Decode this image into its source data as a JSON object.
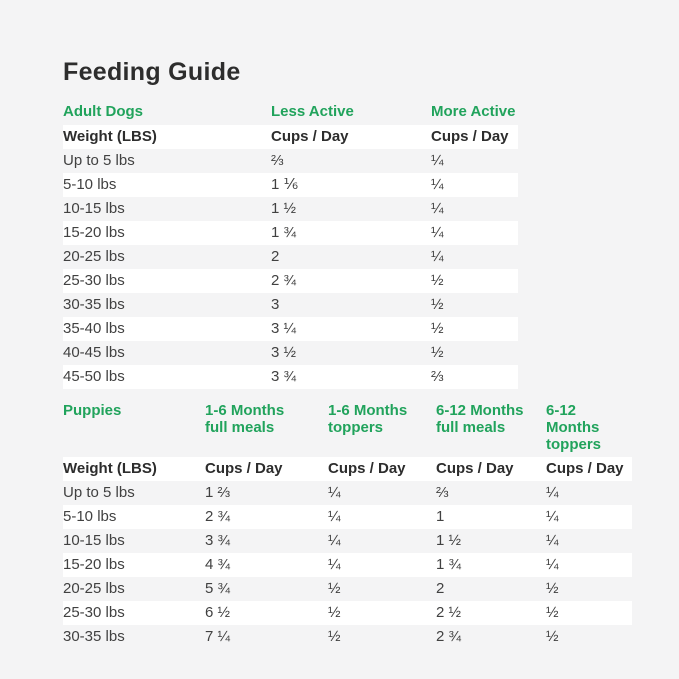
{
  "page": {
    "title": "Feeding Guide",
    "background_color": "#f4f4f5",
    "accent_green": "#21a35c",
    "stripe_white": "#ffffff"
  },
  "adult_table": {
    "section_title": "Adult Dogs",
    "col_headers": [
      "Less Active",
      "More Active"
    ],
    "sub_headers": {
      "weight": "Weight (LBS)",
      "less": "Cups / Day",
      "more": "Cups / Day"
    },
    "rows": [
      {
        "weight": "Up to 5 lbs",
        "less": "⅔",
        "more": "¼"
      },
      {
        "weight": "5-10 lbs",
        "less": "1 ⅙",
        "more": "¼"
      },
      {
        "weight": "10-15 lbs",
        "less": "1 ½",
        "more": "¼"
      },
      {
        "weight": "15-20 lbs",
        "less": "1 ¾",
        "more": "¼"
      },
      {
        "weight": "20-25 lbs",
        "less": "2",
        "more": "¼"
      },
      {
        "weight": "25-30 lbs",
        "less": "2 ¾",
        "more": "½"
      },
      {
        "weight": "30-35 lbs",
        "less": "3",
        "more": "½"
      },
      {
        "weight": "35-40 lbs",
        "less": "3 ¼",
        "more": "½"
      },
      {
        "weight": "40-45 lbs",
        "less": "3 ½",
        "more": "½"
      },
      {
        "weight": "45-50 lbs",
        "less": "3 ¾",
        "more": "⅔"
      }
    ]
  },
  "puppy_table": {
    "section_title": "Puppies",
    "col_headers": [
      {
        "line1": "1-6 Months",
        "line2": "full meals"
      },
      {
        "line1": "1-6 Months",
        "line2": "toppers"
      },
      {
        "line1": "6-12 Months",
        "line2": "full meals"
      },
      {
        "line1": "6-12 Months",
        "line2": "toppers"
      }
    ],
    "sub_headers": {
      "weight": "Weight (LBS)",
      "c1": "Cups / Day",
      "c2": "Cups / Day",
      "c3": "Cups / Day",
      "c4": "Cups / Day"
    },
    "rows": [
      {
        "weight": "Up to 5 lbs",
        "c1": "1 ⅔",
        "c2": "¼",
        "c3": "⅔",
        "c4": "¼"
      },
      {
        "weight": "5-10 lbs",
        "c1": "2 ¾",
        "c2": "¼",
        "c3": "1",
        "c4": "¼"
      },
      {
        "weight": "10-15 lbs",
        "c1": "3 ¾",
        "c2": "¼",
        "c3": "1 ½",
        "c4": "¼"
      },
      {
        "weight": "15-20 lbs",
        "c1": "4 ¾",
        "c2": "¼",
        "c3": "1 ¾",
        "c4": "¼"
      },
      {
        "weight": "20-25 lbs",
        "c1": "5 ¾",
        "c2": "½",
        "c3": "2",
        "c4": "½"
      },
      {
        "weight": "25-30 lbs",
        "c1": "6 ½",
        "c2": "½",
        "c3": "2 ½",
        "c4": "½"
      },
      {
        "weight": "30-35 lbs",
        "c1": "7 ¼",
        "c2": "½",
        "c3": "2 ¾",
        "c4": "½"
      }
    ]
  }
}
